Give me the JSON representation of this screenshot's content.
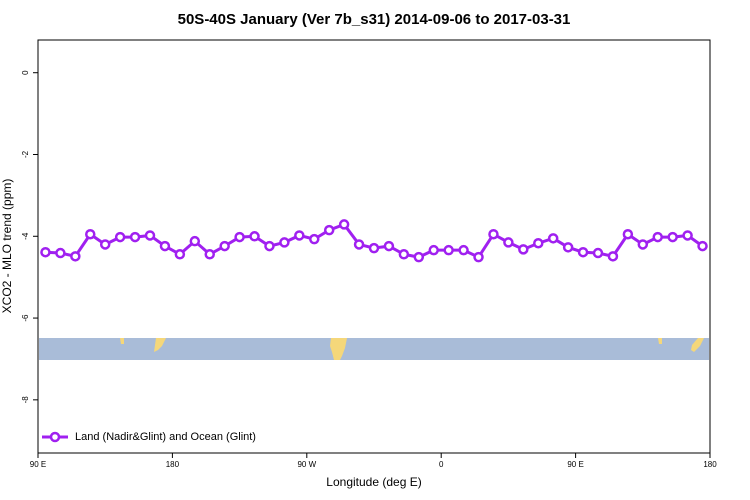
{
  "chart_data": {
    "type": "line",
    "title": "50S-40S January (Ver 7b_s31)   2014-09-06 to 2017-03-31",
    "x_label": "Longitude (deg E)",
    "y_label": "XCO2 - MLO trend (ppm)",
    "xlim": [
      90,
      540
    ],
    "xticks": [
      {
        "value": 90,
        "label": "90 E"
      },
      {
        "value": 180,
        "label": "180"
      },
      {
        "value": 270,
        "label": "90 W"
      },
      {
        "value": 360,
        "label": "0"
      },
      {
        "value": 450,
        "label": "90 E"
      },
      {
        "value": 540,
        "label": "180"
      }
    ],
    "ylim": [
      -9.3,
      0.8
    ],
    "yticks": [
      0,
      -2,
      -4,
      -6,
      -8
    ],
    "legend": "bottom-left",
    "x": [
      95,
      105,
      115,
      125,
      135,
      145,
      155,
      165,
      175,
      185,
      195,
      205,
      215,
      225,
      235,
      245,
      255,
      265,
      275,
      285,
      295,
      305,
      315,
      325,
      335,
      345,
      355,
      365,
      375,
      385,
      395,
      405,
      415,
      425,
      435,
      445,
      455,
      465,
      475,
      485,
      495,
      505,
      515,
      525,
      535
    ],
    "series": [
      {
        "name": "Land (Nadir&Glint) and Ocean (Glint)",
        "color": "#a020f0",
        "values": [
          -4.39,
          -4.41,
          -4.49,
          -3.95,
          -4.2,
          -4.02,
          -4.02,
          -3.98,
          -4.24,
          -4.44,
          -4.12,
          -4.44,
          -4.24,
          -4.02,
          -4.0,
          -4.24,
          -4.15,
          -3.98,
          -4.07,
          -3.85,
          -3.71,
          -4.2,
          -4.29,
          -4.24,
          -4.44,
          -4.51,
          -4.34,
          -4.34,
          -4.34,
          -4.51,
          -3.95,
          -4.15,
          -4.32,
          -4.17,
          -4.05,
          -4.27,
          -4.39,
          -4.41,
          -4.49,
          -3.95,
          -4.2,
          -4.02,
          -4.02,
          -3.98,
          -4.24
        ]
      }
    ]
  }
}
